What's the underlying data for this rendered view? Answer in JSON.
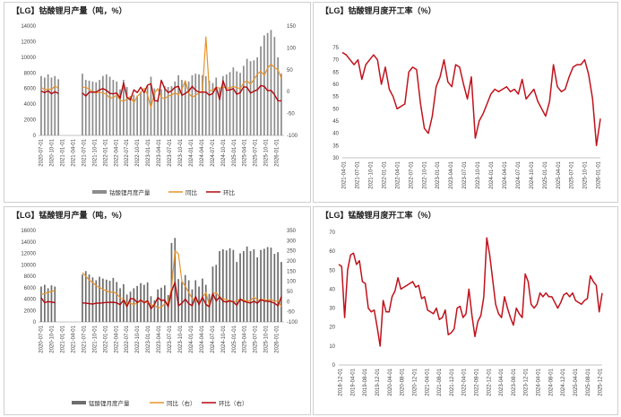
{
  "colors": {
    "bar": "#8c8c8c",
    "bar_dark": "#6d6d6d",
    "yoy": "#e8932a",
    "mom": "#b3090f",
    "line": "#c0121c",
    "axis": "#888888",
    "grid": "#dddddd"
  },
  "chart_data": [
    {
      "id": "tl",
      "type": "bar+line",
      "title": "【LG】钴酸锂月产量（吨，%）",
      "legend": [
        "钴酸锂月度产量",
        "同比",
        "环比"
      ],
      "x_ticks": [
        "2020-07-01",
        "2020-10-01",
        "2021-01-01",
        "2021-04-01",
        "2021-07-01",
        "2021-10-01",
        "2022-01-01",
        "2022-04-01",
        "2022-07-01",
        "2022-10-01",
        "2023-01-01",
        "2023-04-01",
        "2023-07-01",
        "2023-10-01",
        "2024-01-01",
        "2024-04-01",
        "2024-07-01",
        "2024-10-01",
        "2025-01-01",
        "2025-04-01",
        "2025-07-01",
        "2025-10-01",
        "2026-01-01"
      ],
      "y_left": {
        "min": 0,
        "max": 14000,
        "step": 2000,
        "ticks": [
          "0",
          "2000",
          "4000",
          "6000",
          "8000",
          "10000",
          "12000",
          "14000"
        ]
      },
      "y_right": {
        "min": -100,
        "max": 150,
        "step": 50,
        "ticks": [
          "-100",
          "-50",
          "0",
          "50",
          "100",
          "150"
        ]
      },
      "bars": [
        7600,
        7400,
        7800,
        7400,
        7600,
        7200,
        null,
        null,
        null,
        null,
        null,
        null,
        7900,
        7100,
        7000,
        6900,
        6800,
        7100,
        7600,
        7800,
        7500,
        7100,
        6900,
        5900,
        7100,
        6200,
        5000,
        5200,
        5100,
        5600,
        5500,
        6300,
        7500,
        6000,
        4700,
        5900,
        6300,
        6200,
        6300,
        6900,
        7700,
        7100,
        6800,
        6900,
        7700,
        7900,
        7800,
        7700,
        7600,
        7000,
        6700,
        7400,
        6100,
        7600,
        7800,
        8100,
        8700,
        8200,
        8000,
        8900,
        9800,
        9500,
        9600,
        10000,
        11400,
        12800,
        13100,
        13500,
        12600,
        10000,
        7900
      ],
      "yoy": [
        10,
        4,
        6,
        5,
        13,
        8,
        null,
        null,
        null,
        null,
        null,
        null,
        10,
        10,
        5,
        0,
        -3,
        -1,
        -3,
        -6,
        -15,
        -13,
        -8,
        -20,
        -22,
        -17,
        -11,
        -25,
        -11,
        -3,
        8,
        -7,
        -37,
        -3,
        7,
        -13,
        -16,
        -10,
        -8,
        -2,
        -8,
        6,
        25,
        -3,
        -13,
        -8,
        -3,
        0,
        125,
        2,
        3,
        10,
        8,
        11,
        8,
        9,
        12,
        9,
        7,
        20,
        25,
        17,
        28,
        40,
        47,
        37,
        54,
        63,
        55,
        50,
        30
      ],
      "mom": [
        1,
        -2,
        2,
        -5,
        0,
        -4,
        null,
        null,
        null,
        null,
        null,
        null,
        -3,
        -10,
        -1,
        -1,
        -1,
        4,
        7,
        3,
        -4,
        -5,
        -3,
        -15,
        20,
        -13,
        -19,
        4,
        -2,
        10,
        -2,
        15,
        18,
        -20,
        -22,
        26,
        7,
        -2,
        2,
        10,
        12,
        -8,
        -4,
        1,
        12,
        3,
        -1,
        -1,
        -1,
        -8,
        -4,
        10,
        -18,
        25,
        3,
        4,
        7,
        -6,
        -2,
        11,
        10,
        -3,
        1,
        4,
        14,
        12,
        2,
        3,
        -7,
        -21,
        -21
      ]
    },
    {
      "id": "tr",
      "type": "line",
      "title": "【LG】钴酸锂月度开工率（%）",
      "x_ticks": [
        "2021-04-01",
        "2021-07-01",
        "2021-10-01",
        "2022-01-01",
        "2022-04-01",
        "2022-07-01",
        "2022-10-01",
        "2023-01-01",
        "2023-04-01",
        "2023-07-01",
        "2023-10-01",
        "2024-01-01",
        "2024-04-01",
        "2024-07-01",
        "2024-10-01",
        "2025-01-01",
        "2025-04-01",
        "2025-07-01",
        "2025-10-01",
        "2026-01-01"
      ],
      "y": {
        "min": 30,
        "max": 75,
        "step": 5,
        "ticks": [
          "30",
          "35",
          "40",
          "45",
          "50",
          "55",
          "60",
          "65",
          "70",
          "75"
        ]
      },
      "values": [
        73,
        72,
        70,
        68,
        70,
        62,
        68,
        70,
        72,
        70,
        60,
        67,
        58,
        55,
        50,
        51,
        52,
        65,
        67,
        66,
        52,
        42,
        40,
        47,
        59,
        63,
        70,
        61,
        59,
        68,
        67,
        60,
        54,
        63,
        38,
        45,
        48,
        52,
        56,
        58,
        57,
        58,
        59,
        57,
        58,
        56,
        62,
        54,
        56,
        58,
        53,
        50,
        47,
        53,
        68,
        59,
        57,
        58,
        63,
        67,
        68,
        68,
        70,
        64,
        54,
        35,
        46
      ]
    },
    {
      "id": "bl",
      "type": "bar+line",
      "title": "【LG】锰酸锂月产量（吨，%）",
      "legend": [
        "锰酸锂月度产量",
        "同比（右）",
        "环比（右）"
      ],
      "x_ticks": [
        "2020-07-01",
        "2020-10-01",
        "2021-01-01",
        "2021-04-01",
        "2021-07-01",
        "2021-10-01",
        "2022-01-01",
        "2022-04-01",
        "2022-07-01",
        "2022-10-01",
        "2023-01-01",
        "2023-04-01",
        "2023-07-01",
        "2023-10-01",
        "2024-01-01",
        "2024-04-01",
        "2024-07-01",
        "2024-10-01",
        "2025-01-01",
        "2025-04-01",
        "2025-07-01",
        "2025-10-01",
        "2026-01-01"
      ],
      "y_left": {
        "min": 0,
        "max": 16000,
        "step": 2000,
        "ticks": [
          "0",
          "2000",
          "4000",
          "6000",
          "8000",
          "10000",
          "12000",
          "14000",
          "16000"
        ]
      },
      "y_right": {
        "min": -100,
        "max": 350,
        "step": 50,
        "ticks": [
          "-100",
          "-50",
          "0",
          "50",
          "100",
          "150",
          "200",
          "250",
          "300",
          "350"
        ]
      },
      "bars": [
        6200,
        6500,
        5900,
        6400,
        6200,
        null,
        null,
        null,
        null,
        null,
        null,
        null,
        8300,
        8900,
        8300,
        7800,
        7300,
        7900,
        7600,
        7400,
        7200,
        7700,
        7000,
        5900,
        6600,
        4800,
        5300,
        5900,
        6300,
        6800,
        6500,
        6900,
        4500,
        3800,
        5700,
        6000,
        6400,
        4700,
        13800,
        14700,
        7500,
        7000,
        8200,
        7300,
        5700,
        7300,
        6200,
        7600,
        6500,
        4900,
        9700,
        10000,
        12400,
        12700,
        12500,
        12900,
        12600,
        10500,
        12000,
        12400,
        13200,
        12400,
        12700,
        11300,
        12600,
        12800,
        13100,
        13000,
        11900,
        12200,
        10500
      ],
      "yoy": [
        35,
        40,
        46,
        50,
        55,
        null,
        null,
        null,
        null,
        null,
        null,
        null,
        143,
        125,
        105,
        95,
        78,
        70,
        60,
        52,
        46,
        48,
        40,
        18,
        12,
        -12,
        -8,
        -15,
        -6,
        5,
        0,
        -5,
        -15,
        -20,
        -30,
        -28,
        -10,
        -5,
        70,
        250,
        235,
        100,
        75,
        45,
        15,
        8,
        -10,
        20,
        45,
        -20,
        40,
        44,
        20,
        15,
        8,
        4,
        -2,
        5,
        11,
        8,
        2,
        5,
        22,
        9,
        8,
        11,
        4,
        12,
        0,
        5,
        -25
      ],
      "mom": [
        19,
        -5,
        0,
        -2,
        -5,
        null,
        null,
        null,
        null,
        null,
        null,
        null,
        -6,
        -8,
        -10,
        -12,
        -8,
        -8,
        -6,
        -4,
        -4,
        -3,
        -6,
        -15,
        8,
        -25,
        15,
        13,
        -5,
        8,
        -6,
        5,
        -35,
        -15,
        20,
        5,
        8,
        -25,
        50,
        95,
        -20,
        -8,
        12,
        -10,
        -20,
        25,
        -15,
        22,
        -14,
        -25,
        40,
        3,
        24,
        2,
        -2,
        4,
        -2,
        -18,
        12,
        2,
        -3,
        -7,
        2,
        -8,
        10,
        3,
        2,
        -1,
        -8,
        -20,
        25
      ]
    },
    {
      "id": "br",
      "type": "line",
      "title": "【LG】锰酸锂月度开工率（%）",
      "x_ticks": [
        "2018-12-01",
        "2019-04-01",
        "2019-08-01",
        "2019-12-01",
        "2020-04-01",
        "2020-08-01",
        "2020-12-01",
        "2021-04-01",
        "2021-08-01",
        "2021-12-01",
        "2022-04-01",
        "2022-08-01",
        "2022-12-01",
        "2023-04-01",
        "2023-08-01",
        "2023-12-01",
        "2024-04-01",
        "2024-08-01",
        "2024-12-01",
        "2025-04-01",
        "2025-08-01",
        "2025-12-01"
      ],
      "y": {
        "min": 0,
        "max": 70,
        "step": 10,
        "ticks": [
          "0",
          "10",
          "20",
          "30",
          "40",
          "50",
          "60",
          "70"
        ]
      },
      "values": [
        53,
        52,
        25,
        50,
        58,
        59,
        53,
        55,
        44,
        43,
        30,
        28,
        29,
        20,
        10,
        34,
        28,
        28,
        36,
        39,
        46,
        40,
        41,
        42,
        43,
        44,
        41,
        42,
        35,
        36,
        29,
        28,
        27,
        30,
        24,
        25,
        29,
        16,
        17,
        19,
        30,
        31,
        25,
        27,
        40,
        26,
        15,
        23,
        26,
        36,
        67,
        58,
        45,
        32,
        27,
        25,
        36,
        30,
        25,
        21,
        30,
        27,
        25,
        48,
        44,
        32,
        30,
        32,
        38,
        36,
        38,
        36,
        36,
        33,
        30,
        33,
        37,
        38,
        36,
        38,
        34,
        33,
        32,
        34,
        35,
        47,
        44,
        42,
        28,
        38
      ]
    }
  ]
}
